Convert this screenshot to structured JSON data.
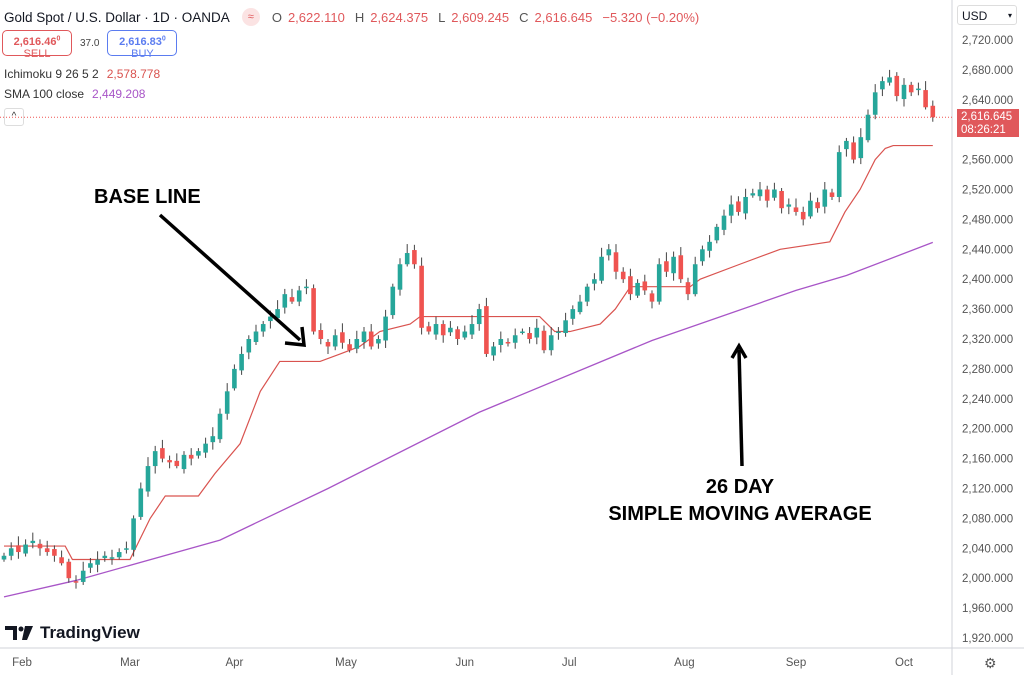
{
  "header": {
    "title": "Gold Spot / U.S. Dollar · 1D · OANDA",
    "open_label": "O",
    "open": "2,622.110",
    "high_label": "H",
    "high": "2,624.375",
    "low_label": "L",
    "low": "2,609.245",
    "close_label": "C",
    "close": "2,616.645",
    "change": "−5.320 (−0.20%)"
  },
  "trade": {
    "sell_price": "2,616.46",
    "sell_sup": "0",
    "sell_label": "SELL",
    "spread": "37.0",
    "buy_price": "2,616.83",
    "buy_sup": "0",
    "buy_label": "BUY"
  },
  "indicators": [
    {
      "name": "Ichimoku 9 26 5 2",
      "value": "2,578.778",
      "color": "#d9534f"
    },
    {
      "name": "SMA 100 close",
      "value": "2,449.208",
      "color": "#a855c7"
    }
  ],
  "currency": "USD",
  "price_tag": {
    "price": "2,616.645",
    "countdown": "08:26:21"
  },
  "logo_text": "TradingView",
  "annotations": {
    "base_line": "BASE LINE",
    "sma_line1": "26 DAY",
    "sma_line2": "SIMPLE MOVING AVERAGE"
  },
  "colors": {
    "up": "#26a69a",
    "down": "#ef5350",
    "kijun": "#d9534f",
    "sma": "#a855c7"
  },
  "chart_data": {
    "type": "candlestick",
    "title": "Gold Spot / U.S. Dollar · 1D · OANDA",
    "ylim": [
      1900,
      2740
    ],
    "y_ticks": [
      2720,
      2680,
      2640,
      2600,
      2560,
      2520,
      2480,
      2440,
      2400,
      2360,
      2320,
      2280,
      2240,
      2200,
      2160,
      2120,
      2080,
      2040,
      2000,
      1960,
      1920
    ],
    "y_tick_labels": [
      "2,720.000",
      "2,680.000",
      "2,640.000",
      "2,600.000",
      "2,560.000",
      "2,520.000",
      "2,480.000",
      "2,440.000",
      "2,400.000",
      "2,360.000",
      "2,320.000",
      "2,280.000",
      "2,240.000",
      "2,200.000",
      "2,160.000",
      "2,120.000",
      "2,080.000",
      "2,040.000",
      "2,000.000",
      "1,960.000",
      "1,920.000"
    ],
    "x_tick_labels": [
      "Feb",
      "Mar",
      "Apr",
      "May",
      "Jun",
      "Jul",
      "Aug",
      "Sep",
      "Oct"
    ],
    "x_tick_bar_index": [
      2.5,
      17.5,
      32,
      47.5,
      64,
      78.5,
      94.5,
      110,
      125
    ],
    "closes": [
      2030,
      2040,
      2035,
      2045,
      2050,
      2040,
      2035,
      2030,
      2020,
      2000,
      1995,
      2010,
      2020,
      2025,
      2030,
      2028,
      2035,
      2040,
      2080,
      2120,
      2150,
      2170,
      2160,
      2155,
      2150,
      2165,
      2160,
      2170,
      2180,
      2190,
      2220,
      2250,
      2280,
      2300,
      2320,
      2330,
      2340,
      2350,
      2360,
      2380,
      2370,
      2385,
      2390,
      2330,
      2320,
      2310,
      2325,
      2315,
      2305,
      2320,
      2330,
      2310,
      2320,
      2350,
      2390,
      2420,
      2435,
      2420,
      2335,
      2330,
      2340,
      2325,
      2335,
      2320,
      2330,
      2340,
      2360,
      2300,
      2310,
      2320,
      2315,
      2325,
      2330,
      2320,
      2335,
      2305,
      2325,
      2330,
      2345,
      2360,
      2370,
      2390,
      2400,
      2430,
      2440,
      2410,
      2400,
      2380,
      2395,
      2385,
      2370,
      2420,
      2410,
      2430,
      2400,
      2380,
      2420,
      2440,
      2450,
      2470,
      2485,
      2500,
      2490,
      2510,
      2515,
      2520,
      2505,
      2520,
      2495,
      2500,
      2490,
      2480,
      2505,
      2495,
      2520,
      2510,
      2570,
      2585,
      2560,
      2590,
      2620,
      2650,
      2665,
      2670,
      2645,
      2660,
      2650,
      2655,
      2630,
      2616.645
    ],
    "kijun": [
      [
        0,
        2043
      ],
      [
        8.5,
        2043
      ],
      [
        9.5,
        2025
      ],
      [
        17.5,
        2025
      ],
      [
        20.3,
        2080
      ],
      [
        22.4,
        2110
      ],
      [
        27,
        2110
      ],
      [
        29.3,
        2140
      ],
      [
        32.8,
        2180
      ],
      [
        35.6,
        2250
      ],
      [
        38.3,
        2290
      ],
      [
        43.9,
        2290
      ],
      [
        46.7,
        2300
      ],
      [
        49.4,
        2310
      ],
      [
        52.2,
        2330
      ],
      [
        56.4,
        2340
      ],
      [
        57.8,
        2350
      ],
      [
        74.4,
        2350
      ],
      [
        76.5,
        2330
      ],
      [
        78.6,
        2330
      ],
      [
        82.8,
        2340
      ],
      [
        84.9,
        2360
      ],
      [
        87,
        2390
      ],
      [
        95.3,
        2390
      ],
      [
        96.7,
        2400
      ],
      [
        102.2,
        2420
      ],
      [
        107.8,
        2440
      ],
      [
        114.7,
        2450
      ],
      [
        116.8,
        2490
      ],
      [
        118.9,
        2520
      ],
      [
        121,
        2560
      ],
      [
        122.4,
        2575
      ],
      [
        123.5,
        2578.778
      ],
      [
        129,
        2578.778
      ]
    ],
    "sma": [
      [
        0,
        1975
      ],
      [
        10,
        1997
      ],
      [
        30,
        2051
      ],
      [
        45,
        2120
      ],
      [
        66,
        2222
      ],
      [
        90,
        2318
      ],
      [
        110,
        2385
      ],
      [
        117,
        2405
      ],
      [
        129,
        2449.208
      ]
    ]
  }
}
